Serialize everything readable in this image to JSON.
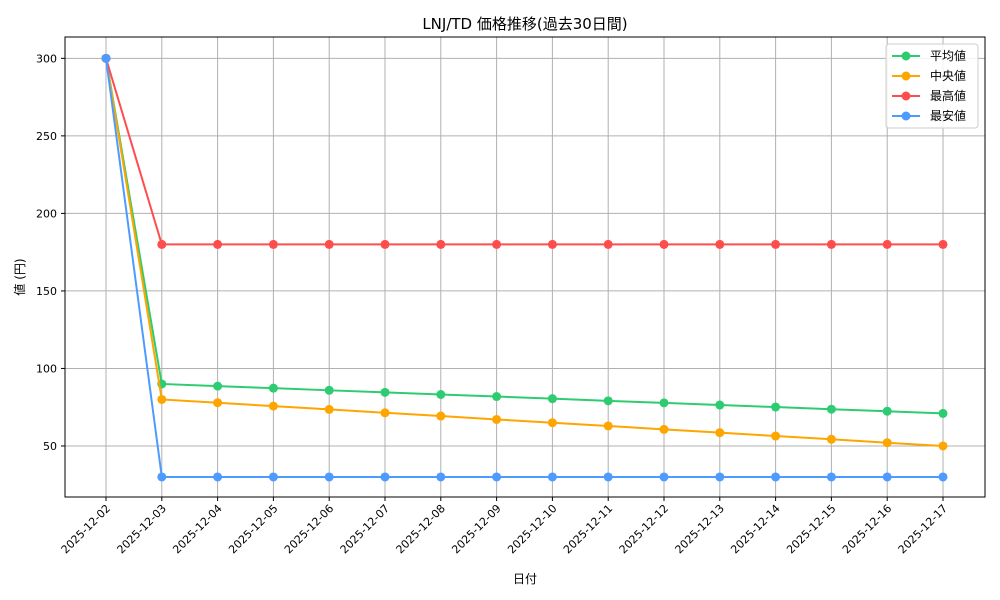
{
  "chart_data": {
    "type": "line",
    "title": "LNJ/TD 価格推移(過去30日間)",
    "xlabel": "日付",
    "ylabel": "値 (円)",
    "ylim": [
      15,
      313
    ],
    "yticks": [
      50,
      100,
      150,
      200,
      250,
      300
    ],
    "grid": true,
    "legend_position": "upper right",
    "x": [
      "2025-12-02",
      "2025-12-03",
      "2025-12-04",
      "2025-12-05",
      "2025-12-06",
      "2025-12-07",
      "2025-12-08",
      "2025-12-09",
      "2025-12-10",
      "2025-12-11",
      "2025-12-12",
      "2025-12-13",
      "2025-12-14",
      "2025-12-15",
      "2025-12-16",
      "2025-12-17"
    ],
    "series": [
      {
        "name": "平均値",
        "color": "#2ecc71",
        "values": [
          300,
          90,
          88.6,
          87.3,
          85.9,
          84.6,
          83.2,
          81.9,
          80.5,
          79.1,
          77.8,
          76.4,
          75.1,
          73.7,
          72.4,
          71
        ]
      },
      {
        "name": "中央値",
        "color": "#ffa500",
        "values": [
          300,
          80,
          77.9,
          75.7,
          73.6,
          71.4,
          69.3,
          67.1,
          65,
          62.9,
          60.7,
          58.6,
          56.4,
          54.3,
          52.1,
          50
        ]
      },
      {
        "name": "最高値",
        "color": "#ff4d4d",
        "values": [
          300,
          180,
          180,
          180,
          180,
          180,
          180,
          180,
          180,
          180,
          180,
          180,
          180,
          180,
          180,
          180
        ]
      },
      {
        "name": "最安値",
        "color": "#4d9bff",
        "values": [
          300,
          30,
          30,
          30,
          30,
          30,
          30,
          30,
          30,
          30,
          30,
          30,
          30,
          30,
          30,
          30
        ]
      }
    ]
  }
}
